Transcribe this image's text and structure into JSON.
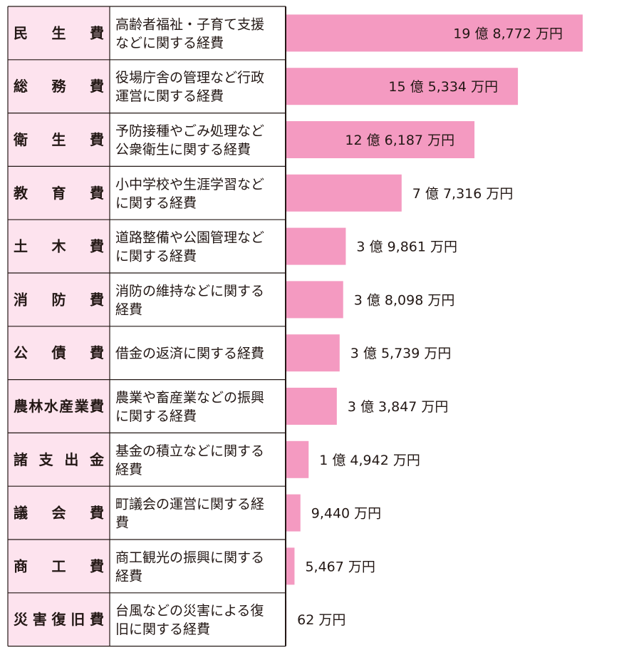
{
  "chart_data": {
    "type": "bar",
    "orientation": "horizontal",
    "bar_color": "#f49ac1",
    "name_cell_bg": "#fde3ee",
    "border_color": "#231815",
    "rows": [
      {
        "name": "民　生　費",
        "desc": [
          "高齢者福祉・子育て支援",
          "などに関する経費"
        ],
        "value": 1987720000,
        "label": "19 億 8,772 万円"
      },
      {
        "name": "総　務　費",
        "desc": [
          "役場庁舎の管理など行政",
          "運営に関する経費"
        ],
        "value": 1553340000,
        "label": "15 億 5,334 万円"
      },
      {
        "name": "衛　生　費",
        "desc": [
          "予防接種やごみ処理など",
          "公衆衛生に関する経費"
        ],
        "value": 1261870000,
        "label": "12 億 6,187 万円"
      },
      {
        "name": "教　育　費",
        "desc": [
          "小中学校や生涯学習など",
          "に関する経費"
        ],
        "value": 773160000,
        "label": "7 億 7,316 万円"
      },
      {
        "name": "土　木　費",
        "desc": [
          "道路整備や公園管理など",
          "に関する経費"
        ],
        "value": 398610000,
        "label": "3 億 9,861 万円"
      },
      {
        "name": "消　防　費",
        "desc": [
          "消防の維持などに関する",
          "経費"
        ],
        "value": 380980000,
        "label": "3 億 8,098 万円"
      },
      {
        "name": "公　債　費",
        "desc": [
          "借金の返済に関する経費"
        ],
        "value": 357390000,
        "label": "3 億 5,739 万円"
      },
      {
        "name": "農林水産業費",
        "desc": [
          "農業や畜産業などの振興",
          "に関する経費"
        ],
        "value": 338470000,
        "label": "3 億 3,847 万円"
      },
      {
        "name": "諸 支 出 金",
        "desc": [
          "基金の積立などに関する",
          "経費"
        ],
        "value": 149420000,
        "label": "1 億 4,942 万円"
      },
      {
        "name": "議　会　費",
        "desc": [
          "町議会の運営に関する経",
          "費"
        ],
        "value": 94400000,
        "label": "9,440 万円"
      },
      {
        "name": "商　工　費",
        "desc": [
          "商工観光の振興に関する",
          "経費"
        ],
        "value": 54670000,
        "label": "5,467 万円"
      },
      {
        "name": "災害復旧費",
        "desc": [
          "台風などの災害による復",
          "旧に関する経費"
        ],
        "value": 620000,
        "label": "62 万円"
      }
    ]
  }
}
